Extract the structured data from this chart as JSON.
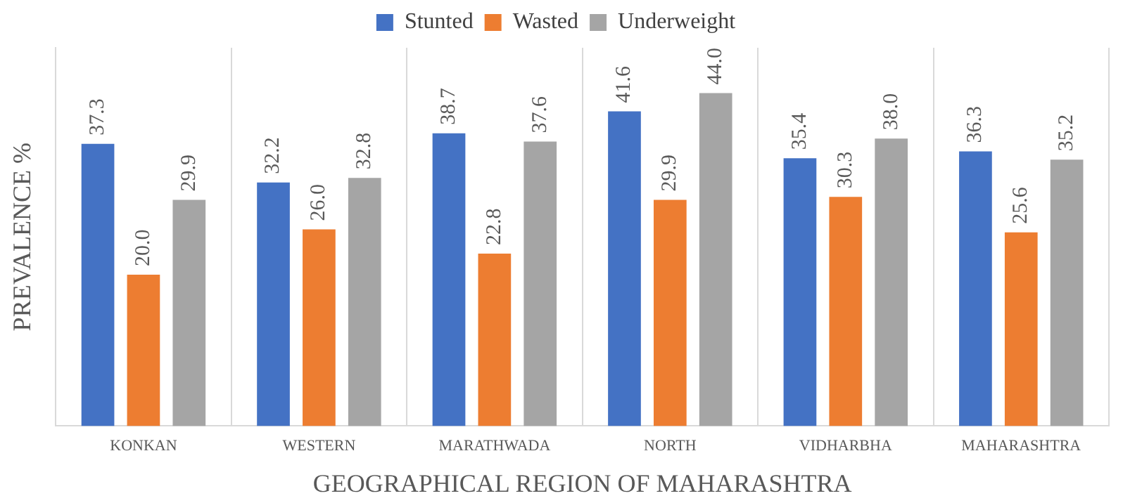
{
  "chart_data": {
    "type": "bar",
    "xlabel": "GEOGRAPHICAL REGION OF MAHARASHTRA",
    "ylabel": "PREVALENCE %",
    "categories": [
      "KONKAN",
      "WESTERN",
      "MARATHWADA",
      "NORTH",
      "VIDHARBHA",
      "MAHARASHTRA"
    ],
    "series": [
      {
        "name": "Stunted",
        "color": "#4472c4",
        "values": [
          37.3,
          32.2,
          38.7,
          41.6,
          35.4,
          36.3
        ],
        "value_labels": [
          "37.3",
          "32.2",
          "38.7",
          "41.6",
          "35.4",
          "36.3"
        ]
      },
      {
        "name": "Wasted",
        "color": "#ed7d31",
        "values": [
          20.0,
          26.0,
          22.8,
          29.9,
          30.3,
          25.6
        ],
        "value_labels": [
          "20.0",
          "26.0",
          "22.8",
          "29.9",
          "30.3",
          "25.6"
        ]
      },
      {
        "name": "Underweight",
        "color": "#a5a5a5",
        "values": [
          29.9,
          32.8,
          37.6,
          44.0,
          38.0,
          35.2
        ],
        "value_labels": [
          "29.9",
          "32.8",
          "37.6",
          "44.0",
          "38.0",
          "35.2"
        ]
      }
    ],
    "legend": "top",
    "grid": "x",
    "tick_labels": "x"
  }
}
